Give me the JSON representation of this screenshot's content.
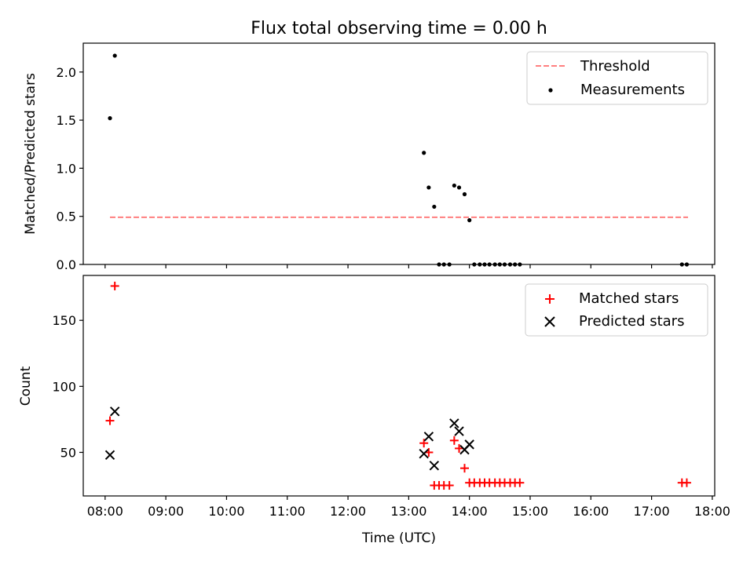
{
  "chart_data": {
    "title": "Flux total observing time = 0.00 h",
    "xlabel": "Time (UTC)",
    "x_ticks": [
      "08:00",
      "09:00",
      "10:00",
      "11:00",
      "12:00",
      "13:00",
      "14:00",
      "15:00",
      "16:00",
      "17:00",
      "18:00"
    ],
    "x_range_hours": [
      7.64,
      18.04
    ],
    "panels": [
      {
        "type": "scatter",
        "ylabel": "Matched/Predicted stars",
        "ylim": [
          0,
          2.3
        ],
        "y_ticks": [
          "0.0",
          "0.5",
          "1.0",
          "1.5",
          "2.0"
        ],
        "y_tick_values": [
          0,
          0.5,
          1.0,
          1.5,
          2.0
        ],
        "legend_position": "top-right",
        "threshold": {
          "name": "Threshold",
          "x": [
            8.08,
            17.6
          ],
          "y": 0.49,
          "color": "#ff7f7f"
        },
        "measurements": {
          "name": "Measurements",
          "color": "#000000",
          "points": [
            [
              8.08,
              1.52
            ],
            [
              8.16,
              2.17
            ],
            [
              13.25,
              1.16
            ],
            [
              13.33,
              0.8
            ],
            [
              13.42,
              0.6
            ],
            [
              13.5,
              0
            ],
            [
              13.58,
              0
            ],
            [
              13.67,
              0
            ],
            [
              13.75,
              0.82
            ],
            [
              13.83,
              0.8
            ],
            [
              13.92,
              0.73
            ],
            [
              14.0,
              0.46
            ],
            [
              14.08,
              0
            ],
            [
              14.17,
              0
            ],
            [
              14.25,
              0
            ],
            [
              14.33,
              0
            ],
            [
              14.42,
              0
            ],
            [
              14.5,
              0
            ],
            [
              14.58,
              0
            ],
            [
              14.67,
              0
            ],
            [
              14.75,
              0
            ],
            [
              14.83,
              0
            ],
            [
              17.5,
              0
            ],
            [
              17.58,
              0
            ]
          ]
        }
      },
      {
        "type": "scatter",
        "ylabel": "Count",
        "ylim": [
          17,
          184
        ],
        "y_ticks": [
          "50",
          "100",
          "150"
        ],
        "y_tick_values": [
          50,
          100,
          150
        ],
        "legend_position": "top-right",
        "matched": {
          "name": "Matched stars",
          "color": "#ff0000",
          "marker": "+",
          "points": [
            [
              8.08,
              74
            ],
            [
              8.16,
              176
            ],
            [
              13.25,
              57
            ],
            [
              13.33,
              50
            ],
            [
              13.42,
              25
            ],
            [
              13.5,
              25
            ],
            [
              13.58,
              25
            ],
            [
              13.67,
              25
            ],
            [
              13.75,
              59
            ],
            [
              13.83,
              53
            ],
            [
              13.92,
              38
            ],
            [
              14.0,
              27
            ],
            [
              14.08,
              27
            ],
            [
              14.17,
              27
            ],
            [
              14.25,
              27
            ],
            [
              14.33,
              27
            ],
            [
              14.42,
              27
            ],
            [
              14.5,
              27
            ],
            [
              14.58,
              27
            ],
            [
              14.67,
              27
            ],
            [
              14.75,
              27
            ],
            [
              14.83,
              27
            ],
            [
              17.5,
              27
            ],
            [
              17.58,
              27
            ]
          ]
        },
        "predicted": {
          "name": "Predicted stars",
          "color": "#000000",
          "marker": "x",
          "points": [
            [
              8.08,
              48
            ],
            [
              8.16,
              81
            ],
            [
              13.25,
              49
            ],
            [
              13.33,
              62
            ],
            [
              13.42,
              40
            ],
            [
              13.75,
              72
            ],
            [
              13.83,
              66
            ],
            [
              13.92,
              52
            ],
            [
              14.0,
              56
            ]
          ]
        }
      }
    ]
  }
}
